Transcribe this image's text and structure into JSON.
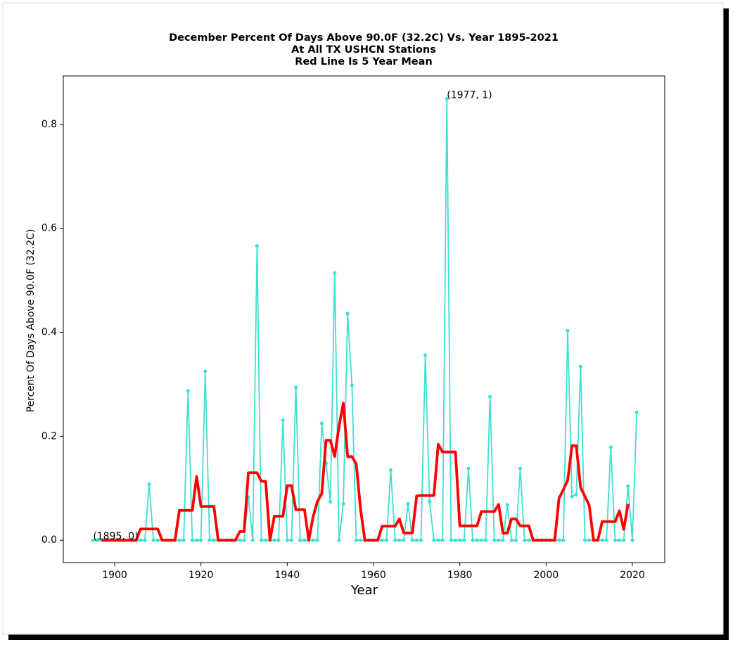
{
  "chart_data": {
    "type": "line",
    "title": [
      "December Percent Of Days Above 90.0F (32.2C) Vs. Year 1895-2021",
      "At All TX USHCN Stations",
      "Red Line Is 5 Year Mean"
    ],
    "x_label": "Year",
    "y_label": "Percent Of Days Above 90.0F (32.2C)",
    "x": [
      1895,
      1896,
      1897,
      1898,
      1899,
      1900,
      1901,
      1902,
      1903,
      1904,
      1905,
      1906,
      1907,
      1908,
      1909,
      1910,
      1911,
      1912,
      1913,
      1914,
      1915,
      1916,
      1917,
      1918,
      1919,
      1920,
      1921,
      1922,
      1923,
      1924,
      1925,
      1926,
      1927,
      1928,
      1929,
      1930,
      1931,
      1932,
      1933,
      1934,
      1935,
      1936,
      1937,
      1938,
      1939,
      1940,
      1941,
      1942,
      1943,
      1944,
      1945,
      1946,
      1947,
      1948,
      1949,
      1950,
      1951,
      1952,
      1953,
      1954,
      1955,
      1956,
      1957,
      1958,
      1959,
      1960,
      1961,
      1962,
      1963,
      1964,
      1965,
      1966,
      1967,
      1968,
      1969,
      1970,
      1971,
      1972,
      1973,
      1974,
      1975,
      1976,
      1977,
      1978,
      1979,
      1980,
      1981,
      1982,
      1983,
      1984,
      1985,
      1986,
      1987,
      1988,
      1989,
      1990,
      1991,
      1992,
      1993,
      1994,
      1995,
      1996,
      1997,
      1998,
      1999,
      2000,
      2001,
      2002,
      2003,
      2004,
      2005,
      2006,
      2007,
      2008,
      2009,
      2010,
      2011,
      2012,
      2013,
      2014,
      2015,
      2016,
      2017,
      2018,
      2019,
      2020,
      2021
    ],
    "series": [
      {
        "color": "#40e0d0",
        "markers": true,
        "values": [
          0,
          0,
          0,
          0,
          0,
          0,
          0,
          0,
          0,
          0,
          0,
          0,
          0,
          0.108,
          0,
          0,
          0,
          0,
          0,
          0,
          0,
          0,
          0.287,
          0,
          0,
          0,
          0.325,
          0,
          0,
          0,
          0,
          0,
          0,
          0,
          0,
          0,
          0.083,
          0,
          0.566,
          0,
          0,
          0,
          0,
          0,
          0.231,
          0,
          0,
          0.294,
          0,
          0,
          0,
          0,
          0,
          0.225,
          0.148,
          0.074,
          0.514,
          0,
          0.07,
          0.436,
          0.298,
          0,
          0,
          0,
          0,
          0,
          0,
          0,
          0,
          0.135,
          0,
          0,
          0,
          0.07,
          0,
          0,
          0,
          0.356,
          0.074,
          0,
          0,
          0,
          0.849,
          0,
          0,
          0,
          0,
          0.138,
          0,
          0,
          0,
          0,
          0.276,
          0,
          0,
          0,
          0.068,
          0,
          0,
          0.138,
          0,
          0,
          0,
          0,
          0,
          0,
          0,
          0,
          0,
          0,
          0.403,
          0.084,
          0.088,
          0.334,
          0,
          0,
          0,
          0,
          0,
          0,
          0.179,
          0,
          0,
          0,
          0.104,
          0,
          0.246
        ]
      },
      {
        "color": "#ff0000",
        "markers": false,
        "values": [
          null,
          null,
          0,
          0,
          0,
          0,
          0,
          0,
          0,
          0,
          0,
          0.0216,
          0.0216,
          0.0216,
          0.0216,
          0.0216,
          0,
          0,
          0,
          0,
          0.0574,
          0.0574,
          0.0574,
          0.0574,
          0.1224,
          0.065,
          0.065,
          0.065,
          0.065,
          0,
          0,
          0,
          0,
          0,
          0.0166,
          0.0166,
          0.1298,
          0.1298,
          0.1298,
          0.1132,
          0.1132,
          0,
          0.0462,
          0.0462,
          0.0462,
          0.105,
          0.105,
          0.0588,
          0.0588,
          0.0588,
          0,
          0.045,
          0.0746,
          0.0894,
          0.1922,
          0.1922,
          0.1612,
          0.2188,
          0.2636,
          0.1608,
          0.1608,
          0.1468,
          0.0596,
          0,
          0,
          0,
          0,
          0.027,
          0.027,
          0.027,
          0.027,
          0.041,
          0.014,
          0.014,
          0.014,
          0.0852,
          0.086,
          0.086,
          0.086,
          0.086,
          0.1846,
          0.1698,
          0.1698,
          0.1698,
          0.1698,
          0.0276,
          0.0276,
          0.0276,
          0.0276,
          0.0276,
          0.0552,
          0.0552,
          0.0552,
          0.0552,
          0.0688,
          0.0136,
          0.0136,
          0.0412,
          0.0412,
          0.0276,
          0.0276,
          0.0276,
          0,
          0,
          0,
          0,
          0,
          0,
          0.0806,
          0.0974,
          0.115,
          0.1818,
          0.1818,
          0.1012,
          0.0844,
          0.0668,
          0,
          0,
          0.0358,
          0.0358,
          0.0358,
          0.0358,
          0.0566,
          0.0208,
          0.07,
          null,
          null
        ]
      }
    ],
    "annotations": [
      {
        "text": "(1895, 0)",
        "x": 1895,
        "y": 0
      },
      {
        "text": "(1977, 1)",
        "x": 1977,
        "y": 0.849
      }
    ],
    "xlim": [
      1888.1,
      2027.5
    ],
    "ylim": [
      -0.043,
      0.893
    ],
    "xticks": [
      1900,
      1920,
      1940,
      1960,
      1980,
      2000,
      2020
    ],
    "yticks": [
      {
        "value": 0,
        "label": "0.0"
      },
      0.2,
      0.4,
      0.6,
      0.8
    ]
  }
}
